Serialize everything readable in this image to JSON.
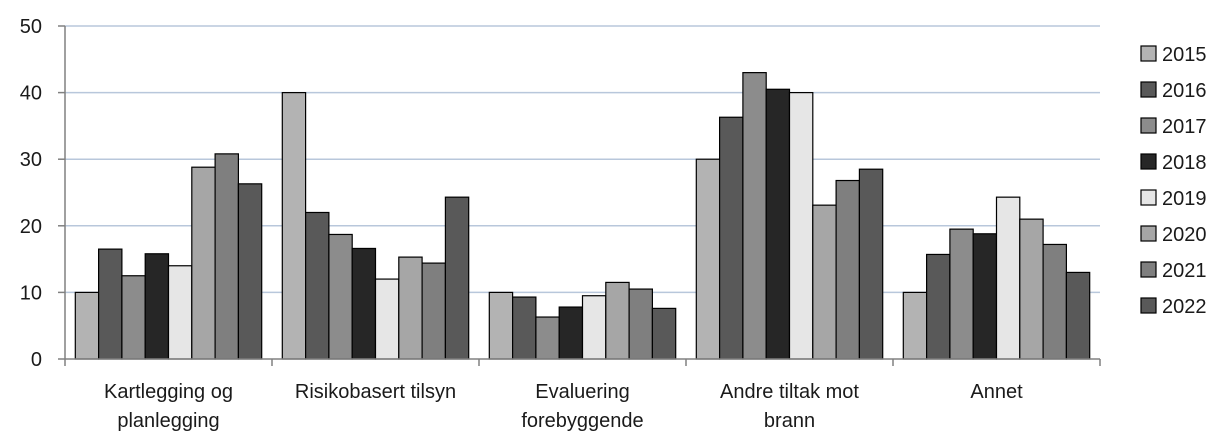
{
  "chart_data": {
    "type": "bar",
    "categories": [
      [
        "Kartlegging og",
        "planlegging"
      ],
      [
        "Risikobasert tilsyn"
      ],
      [
        "Evaluering",
        "forebyggende"
      ],
      [
        "Andre tiltak mot",
        "brann"
      ],
      [
        "Annet"
      ]
    ],
    "series": [
      {
        "name": "2015",
        "color": "#b3b3b3",
        "values": [
          10,
          40,
          10,
          30,
          10
        ]
      },
      {
        "name": "2016",
        "color": "#595959",
        "values": [
          16.5,
          22,
          9.3,
          36.3,
          15.7
        ]
      },
      {
        "name": "2017",
        "color": "#8c8c8c",
        "values": [
          12.5,
          18.7,
          6.3,
          43,
          19.5
        ]
      },
      {
        "name": "2018",
        "color": "#262626",
        "values": [
          15.8,
          16.6,
          7.8,
          40.5,
          18.8
        ]
      },
      {
        "name": "2019",
        "color": "#e6e6e6",
        "values": [
          14,
          12,
          9.5,
          40,
          24.3
        ]
      },
      {
        "name": "2020",
        "color": "#a6a6a6",
        "values": [
          28.8,
          15.3,
          11.5,
          23.1,
          21
        ]
      },
      {
        "name": "2021",
        "color": "#7f7f7f",
        "values": [
          30.8,
          14.4,
          10.5,
          26.8,
          17.2
        ]
      },
      {
        "name": "2022",
        "color": "#595959",
        "values": [
          26.3,
          24.3,
          7.6,
          28.5,
          13
        ]
      }
    ],
    "ylim": [
      0,
      50
    ],
    "yticks": [
      0,
      10,
      20,
      30,
      40,
      50
    ],
    "grid": true,
    "legend": "right",
    "title": "",
    "xlabel": "",
    "ylabel": ""
  }
}
